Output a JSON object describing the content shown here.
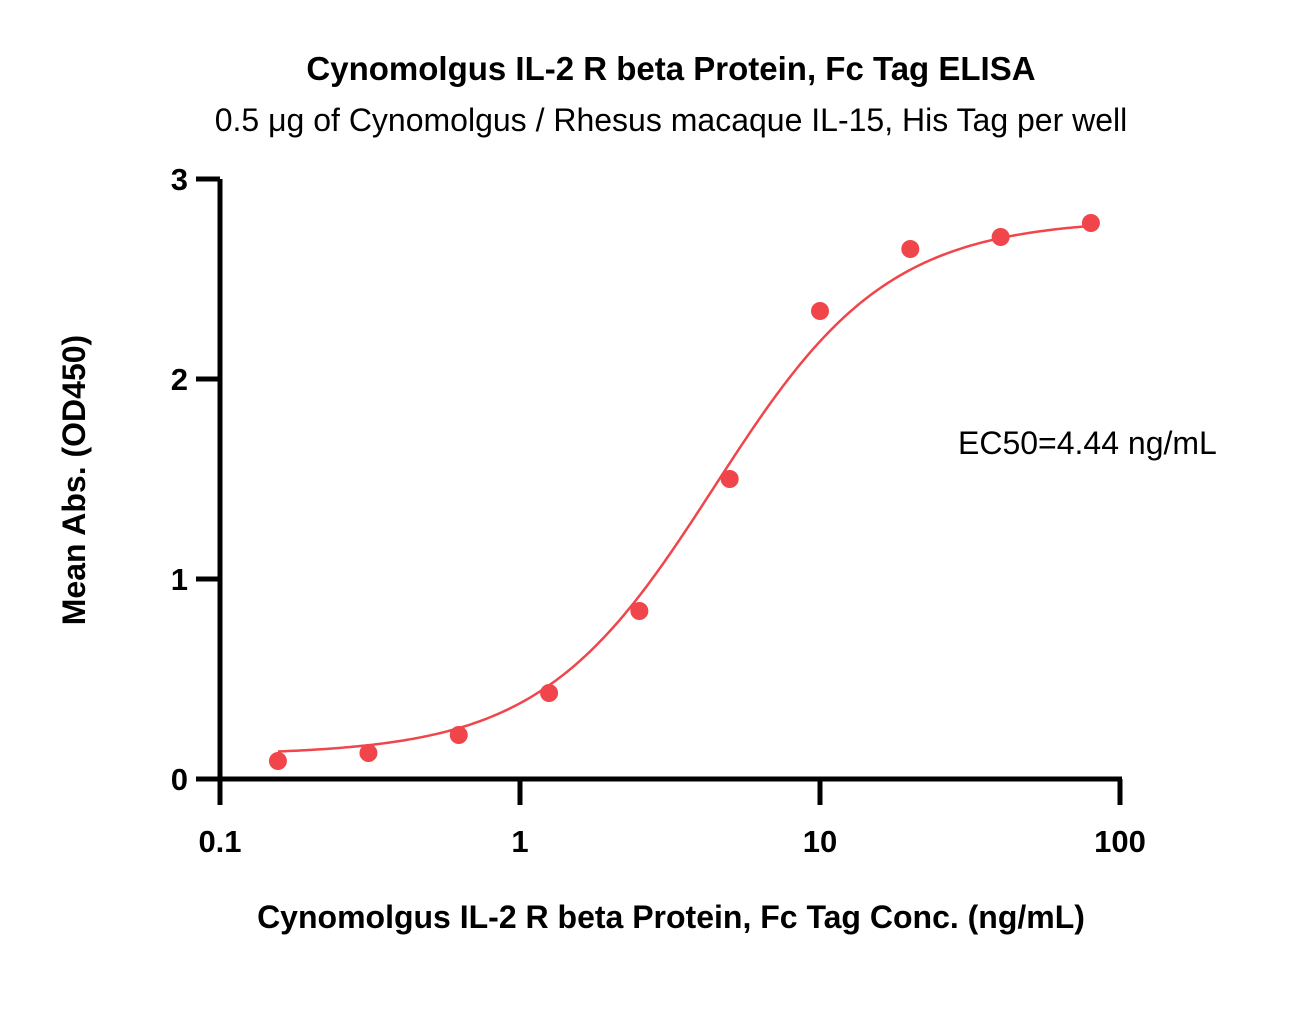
{
  "chart_data": {
    "type": "scatter",
    "title": "Cynomolgus IL-2 R beta Protein, Fc Tag ELISA",
    "subtitle": "0.5 μg of Cynomolgus / Rhesus macaque IL-15, His Tag per well",
    "xlabel": "Cynomolgus IL-2 R beta Protein, Fc Tag Conc. (ng/mL)",
    "ylabel": "Mean Abs. (OD450)",
    "x_scale": "log",
    "xlim": [
      0.1,
      100
    ],
    "ylim": [
      0,
      3
    ],
    "x_ticks": [
      "0.1",
      "1",
      "10",
      "100"
    ],
    "y_ticks": [
      "0",
      "1",
      "2",
      "3"
    ],
    "grid": false,
    "color": "#f0454a",
    "series": [
      {
        "points": [
          {
            "x": 0.156,
            "y": 0.09
          },
          {
            "x": 0.3125,
            "y": 0.13
          },
          {
            "x": 0.625,
            "y": 0.22
          },
          {
            "x": 1.25,
            "y": 0.43
          },
          {
            "x": 2.5,
            "y": 0.84
          },
          {
            "x": 5,
            "y": 1.5
          },
          {
            "x": 10,
            "y": 2.34
          },
          {
            "x": 20,
            "y": 2.65
          },
          {
            "x": 40,
            "y": 2.71
          },
          {
            "x": 80,
            "y": 2.78
          }
        ],
        "fit": {
          "model": "4PL",
          "bottom": 0.12,
          "top": 2.8,
          "ec50": 4.44,
          "hill": 1.5
        }
      }
    ],
    "annotations": [
      "EC50=4.44 ng/mL"
    ]
  }
}
